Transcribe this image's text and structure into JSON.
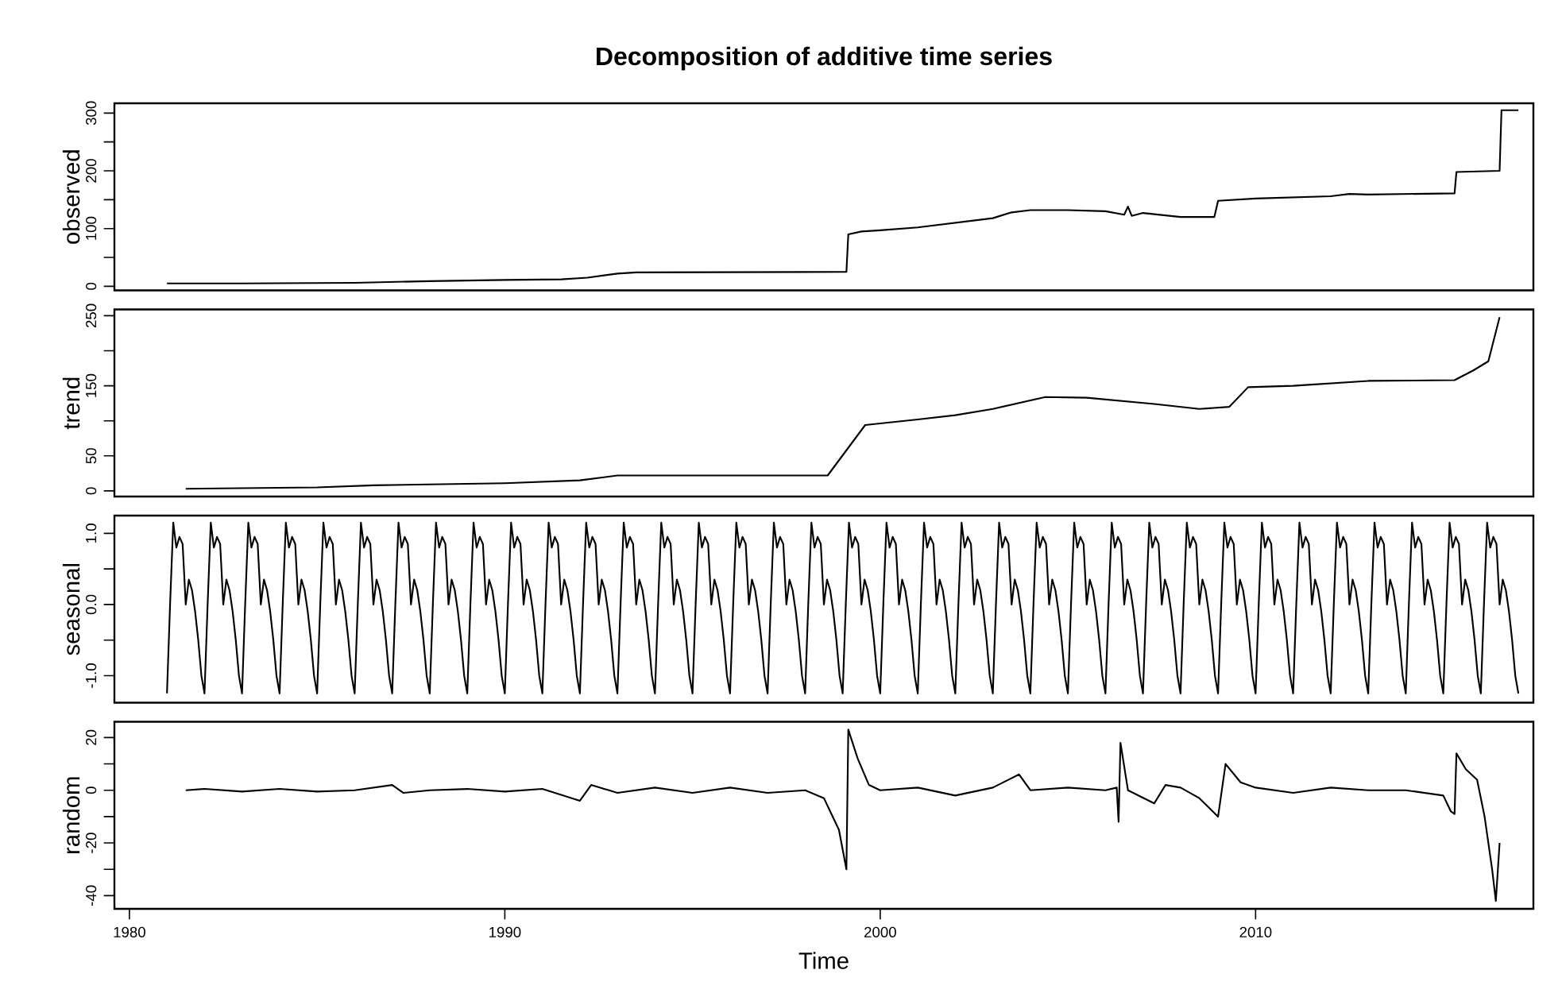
{
  "chart_data": [
    {
      "type": "line",
      "title": "Decomposition of additive time series",
      "ylabel": "observed",
      "color": "#000000",
      "tick_labels": "y",
      "xlim": [
        1979.6,
        2017.4
      ],
      "ylim": [
        -7,
        317
      ],
      "yticks": [
        0,
        {
          "value": 50,
          "label": null
        },
        100,
        {
          "value": 150,
          "label": null
        },
        200,
        {
          "value": 250,
          "label": null
        },
        300
      ],
      "x": [
        1981,
        1983,
        1986,
        1988,
        1990,
        1991.5,
        1992.2,
        1993,
        1993.5,
        1999.1,
        1999.15,
        1999.5,
        2000,
        2001,
        2002,
        2003,
        2003.5,
        2004,
        2005,
        2006,
        2006.5,
        2006.6,
        2006.7,
        2007,
        2008,
        2008.9,
        2009,
        2010,
        2011,
        2012,
        2012.5,
        2013,
        2015.3,
        2015.35,
        2016.5,
        2016.55,
        2017
      ],
      "values": [
        5,
        5,
        6,
        9,
        11,
        12,
        15,
        22,
        24,
        25,
        90,
        95,
        97,
        102,
        110,
        118,
        128,
        132,
        132,
        130,
        124,
        138,
        122,
        127,
        120,
        120,
        148,
        152,
        154,
        156,
        160,
        159,
        161,
        198,
        200,
        305,
        305
      ]
    },
    {
      "type": "line",
      "ylabel": "trend",
      "color": "#000000",
      "tick_labels": "y",
      "xlim": [
        1979.6,
        2017.4
      ],
      "ylim": [
        -8,
        259
      ],
      "yticks": [
        0,
        50,
        {
          "value": 100,
          "label": null
        },
        150,
        {
          "value": 200,
          "label": null
        },
        250
      ],
      "x": [
        1981.5,
        1985,
        1986.5,
        1990,
        1992,
        1993,
        1998.6,
        1999.6,
        2001,
        2002,
        2003,
        2004.4,
        2005.5,
        2007.3,
        2008.5,
        2009.3,
        2009.8,
        2011,
        2013,
        2015.3,
        2015.8,
        2016.2,
        2016.5
      ],
      "values": [
        3,
        5,
        8,
        11,
        15,
        22,
        22,
        94,
        102,
        108,
        117,
        134,
        133,
        124,
        117,
        120,
        148,
        150,
        157,
        158,
        172,
        185,
        248
      ]
    },
    {
      "type": "line",
      "ylabel": "seasonal",
      "color": "#000000",
      "tick_labels": "y",
      "xlim": [
        1979.6,
        2017.4
      ],
      "ylim": [
        -1.38,
        1.25
      ],
      "yticks": [
        {
          "value": -1,
          "label": "-1.0"
        },
        {
          "value": -0.5,
          "label": null
        },
        {
          "value": 0,
          "label": "0.0"
        },
        {
          "value": 0.5,
          "label": null
        },
        {
          "value": 1,
          "label": "1.0"
        }
      ],
      "x": [
        1981,
        1981.083,
        1981.167,
        1981.25,
        1981.333,
        1981.417,
        1981.5,
        1981.583,
        1981.667,
        1981.75,
        1981.833,
        1981.917,
        1982,
        1982.083,
        1982.167,
        1982.25,
        1982.333,
        1982.417,
        1982.5,
        1982.583,
        1982.667,
        1982.75,
        1982.833,
        1982.917,
        1983,
        1983.083,
        1983.167,
        1983.25,
        1983.333,
        1983.417,
        1983.5,
        1983.583,
        1983.667,
        1983.75,
        1983.833,
        1983.917,
        1984,
        1984.083,
        1984.167,
        1984.25,
        1984.333,
        1984.417,
        1984.5,
        1984.583,
        1984.667,
        1984.75,
        1984.833,
        1984.917,
        1985,
        1985.083,
        1985.167,
        1985.25,
        1985.333,
        1985.417,
        1985.5,
        1985.583,
        1985.667,
        1985.75,
        1985.833,
        1985.917,
        1986,
        1986.083,
        1986.167,
        1986.25,
        1986.333,
        1986.417,
        1986.5,
        1986.583,
        1986.667,
        1986.75,
        1986.833,
        1986.917,
        1987,
        1987.083,
        1987.167,
        1987.25,
        1987.333,
        1987.417,
        1987.5,
        1987.583,
        1987.667,
        1987.75,
        1987.833,
        1987.917,
        1988,
        1988.083,
        1988.167,
        1988.25,
        1988.333,
        1988.417,
        1988.5,
        1988.583,
        1988.667,
        1988.75,
        1988.833,
        1988.917,
        1989,
        1989.083,
        1989.167,
        1989.25,
        1989.333,
        1989.417,
        1989.5,
        1989.583,
        1989.667,
        1989.75,
        1989.833,
        1989.917,
        1990,
        1990.083,
        1990.167,
        1990.25,
        1990.333,
        1990.417,
        1990.5,
        1990.583,
        1990.667,
        1990.75,
        1990.833,
        1990.917,
        1991,
        1991.083,
        1991.167,
        1991.25,
        1991.333,
        1991.417,
        1991.5,
        1991.583,
        1991.667,
        1991.75,
        1991.833,
        1991.917,
        1992,
        1992.083,
        1992.167,
        1992.25,
        1992.333,
        1992.417,
        1992.5,
        1992.583,
        1992.667,
        1992.75,
        1992.833,
        1992.917,
        1993,
        1993.083,
        1993.167,
        1993.25,
        1993.333,
        1993.417,
        1993.5,
        1993.583,
        1993.667,
        1993.75,
        1993.833,
        1993.917,
        1994,
        1994.083,
        1994.167,
        1994.25,
        1994.333,
        1994.417,
        1994.5,
        1994.583,
        1994.667,
        1994.75,
        1994.833,
        1994.917,
        1995,
        1995.083,
        1995.167,
        1995.25,
        1995.333,
        1995.417,
        1995.5,
        1995.583,
        1995.667,
        1995.75,
        1995.833,
        1995.917,
        1996,
        1996.083,
        1996.167,
        1996.25,
        1996.333,
        1996.417,
        1996.5,
        1996.583,
        1996.667,
        1996.75,
        1996.833,
        1996.917,
        1997,
        1997.083,
        1997.167,
        1997.25,
        1997.333,
        1997.417,
        1997.5,
        1997.583,
        1997.667,
        1997.75,
        1997.833,
        1997.917,
        1998,
        1998.083,
        1998.167,
        1998.25,
        1998.333,
        1998.417,
        1998.5,
        1998.583,
        1998.667,
        1998.75,
        1998.833,
        1998.917,
        1999,
        1999.083,
        1999.167,
        1999.25,
        1999.333,
        1999.417,
        1999.5,
        1999.583,
        1999.667,
        1999.75,
        1999.833,
        1999.917,
        2000,
        2000.083,
        2000.167,
        2000.25,
        2000.333,
        2000.417,
        2000.5,
        2000.583,
        2000.667,
        2000.75,
        2000.833,
        2000.917,
        2001,
        2001.083,
        2001.167,
        2001.25,
        2001.333,
        2001.417,
        2001.5,
        2001.583,
        2001.667,
        2001.75,
        2001.833,
        2001.917,
        2002,
        2002.083,
        2002.167,
        2002.25,
        2002.333,
        2002.417,
        2002.5,
        2002.583,
        2002.667,
        2002.75,
        2002.833,
        2002.917,
        2003,
        2003.083,
        2003.167,
        2003.25,
        2003.333,
        2003.417,
        2003.5,
        2003.583,
        2003.667,
        2003.75,
        2003.833,
        2003.917,
        2004,
        2004.083,
        2004.167,
        2004.25,
        2004.333,
        2004.417,
        2004.5,
        2004.583,
        2004.667,
        2004.75,
        2004.833,
        2004.917,
        2005,
        2005.083,
        2005.167,
        2005.25,
        2005.333,
        2005.417,
        2005.5,
        2005.583,
        2005.667,
        2005.75,
        2005.833,
        2005.917,
        2006,
        2006.083,
        2006.167,
        2006.25,
        2006.333,
        2006.417,
        2006.5,
        2006.583,
        2006.667,
        2006.75,
        2006.833,
        2006.917,
        2007,
        2007.083,
        2007.167,
        2007.25,
        2007.333,
        2007.417,
        2007.5,
        2007.583,
        2007.667,
        2007.75,
        2007.833,
        2007.917,
        2008,
        2008.083,
        2008.167,
        2008.25,
        2008.333,
        2008.417,
        2008.5,
        2008.583,
        2008.667,
        2008.75,
        2008.833,
        2008.917,
        2009,
        2009.083,
        2009.167,
        2009.25,
        2009.333,
        2009.417,
        2009.5,
        2009.583,
        2009.667,
        2009.75,
        2009.833,
        2009.917,
        2010,
        2010.083,
        2010.167,
        2010.25,
        2010.333,
        2010.417,
        2010.5,
        2010.583,
        2010.667,
        2010.75,
        2010.833,
        2010.917,
        2011,
        2011.083,
        2011.167,
        2011.25,
        2011.333,
        2011.417,
        2011.5,
        2011.583,
        2011.667,
        2011.75,
        2011.833,
        2011.917,
        2012,
        2012.083,
        2012.167,
        2012.25,
        2012.333,
        2012.417,
        2012.5,
        2012.583,
        2012.667,
        2012.75,
        2012.833,
        2012.917,
        2013,
        2013.083,
        2013.167,
        2013.25,
        2013.333,
        2013.417,
        2013.5,
        2013.583,
        2013.667,
        2013.75,
        2013.833,
        2013.917,
        2014,
        2014.083,
        2014.167,
        2014.25,
        2014.333,
        2014.417,
        2014.5,
        2014.583,
        2014.667,
        2014.75,
        2014.833,
        2014.917,
        2015,
        2015.083,
        2015.167,
        2015.25,
        2015.333,
        2015.417,
        2015.5,
        2015.583,
        2015.667,
        2015.75,
        2015.833,
        2015.917,
        2016,
        2016.083,
        2016.167,
        2016.25,
        2016.333,
        2016.417,
        2016.5,
        2016.583,
        2016.667,
        2016.75,
        2016.833,
        2016.917,
        2017
      ],
      "values": [
        -1.25,
        0,
        1.15,
        0.8,
        0.95,
        0.85,
        0,
        0.35,
        0.2,
        -0.1,
        -0.5,
        -1,
        -1.25,
        0,
        1.15,
        0.8,
        0.95,
        0.85,
        0,
        0.35,
        0.2,
        -0.1,
        -0.5,
        -1,
        -1.25,
        0,
        1.15,
        0.8,
        0.95,
        0.85,
        0,
        0.35,
        0.2,
        -0.1,
        -0.5,
        -1,
        -1.25,
        0,
        1.15,
        0.8,
        0.95,
        0.85,
        0,
        0.35,
        0.2,
        -0.1,
        -0.5,
        -1,
        -1.25,
        0,
        1.15,
        0.8,
        0.95,
        0.85,
        0,
        0.35,
        0.2,
        -0.1,
        -0.5,
        -1,
        -1.25,
        0,
        1.15,
        0.8,
        0.95,
        0.85,
        0,
        0.35,
        0.2,
        -0.1,
        -0.5,
        -1,
        -1.25,
        0,
        1.15,
        0.8,
        0.95,
        0.85,
        0,
        0.35,
        0.2,
        -0.1,
        -0.5,
        -1,
        -1.25,
        0,
        1.15,
        0.8,
        0.95,
        0.85,
        0,
        0.35,
        0.2,
        -0.1,
        -0.5,
        -1,
        -1.25,
        0,
        1.15,
        0.8,
        0.95,
        0.85,
        0,
        0.35,
        0.2,
        -0.1,
        -0.5,
        -1,
        -1.25,
        0,
        1.15,
        0.8,
        0.95,
        0.85,
        0,
        0.35,
        0.2,
        -0.1,
        -0.5,
        -1,
        -1.25,
        0,
        1.15,
        0.8,
        0.95,
        0.85,
        0,
        0.35,
        0.2,
        -0.1,
        -0.5,
        -1,
        -1.25,
        0,
        1.15,
        0.8,
        0.95,
        0.85,
        0,
        0.35,
        0.2,
        -0.1,
        -0.5,
        -1,
        -1.25,
        0,
        1.15,
        0.8,
        0.95,
        0.85,
        0,
        0.35,
        0.2,
        -0.1,
        -0.5,
        -1,
        -1.25,
        0,
        1.15,
        0.8,
        0.95,
        0.85,
        0,
        0.35,
        0.2,
        -0.1,
        -0.5,
        -1,
        -1.25,
        0,
        1.15,
        0.8,
        0.95,
        0.85,
        0,
        0.35,
        0.2,
        -0.1,
        -0.5,
        -1,
        -1.25,
        0,
        1.15,
        0.8,
        0.95,
        0.85,
        0,
        0.35,
        0.2,
        -0.1,
        -0.5,
        -1,
        -1.25,
        0,
        1.15,
        0.8,
        0.95,
        0.85,
        0,
        0.35,
        0.2,
        -0.1,
        -0.5,
        -1,
        -1.25,
        0,
        1.15,
        0.8,
        0.95,
        0.85,
        0,
        0.35,
        0.2,
        -0.1,
        -0.5,
        -1,
        -1.25,
        0,
        1.15,
        0.8,
        0.95,
        0.85,
        0,
        0.35,
        0.2,
        -0.1,
        -0.5,
        -1,
        -1.25,
        0,
        1.15,
        0.8,
        0.95,
        0.85,
        0,
        0.35,
        0.2,
        -0.1,
        -0.5,
        -1,
        -1.25,
        0,
        1.15,
        0.8,
        0.95,
        0.85,
        0,
        0.35,
        0.2,
        -0.1,
        -0.5,
        -1,
        -1.25,
        0,
        1.15,
        0.8,
        0.95,
        0.85,
        0,
        0.35,
        0.2,
        -0.1,
        -0.5,
        -1,
        -1.25,
        0,
        1.15,
        0.8,
        0.95,
        0.85,
        0,
        0.35,
        0.2,
        -0.1,
        -0.5,
        -1,
        -1.25,
        0,
        1.15,
        0.8,
        0.95,
        0.85,
        0,
        0.35,
        0.2,
        -0.1,
        -0.5,
        -1,
        -1.25,
        0,
        1.15,
        0.8,
        0.95,
        0.85,
        0,
        0.35,
        0.2,
        -0.1,
        -0.5,
        -1,
        -1.25,
        0,
        1.15,
        0.8,
        0.95,
        0.85,
        0,
        0.35,
        0.2,
        -0.1,
        -0.5,
        -1,
        -1.25,
        0,
        1.15,
        0.8,
        0.95,
        0.85,
        0,
        0.35,
        0.2,
        -0.1,
        -0.5,
        -1,
        -1.25,
        0,
        1.15,
        0.8,
        0.95,
        0.85,
        0,
        0.35,
        0.2,
        -0.1,
        -0.5,
        -1,
        -1.25,
        0,
        1.15,
        0.8,
        0.95,
        0.85,
        0,
        0.35,
        0.2,
        -0.1,
        -0.5,
        -1,
        -1.25,
        0,
        1.15,
        0.8,
        0.95,
        0.85,
        0,
        0.35,
        0.2,
        -0.1,
        -0.5,
        -1,
        -1.25,
        0,
        1.15,
        0.8,
        0.95,
        0.85,
        0,
        0.35,
        0.2,
        -0.1,
        -0.5,
        -1,
        -1.25,
        0,
        1.15,
        0.8,
        0.95,
        0.85,
        0,
        0.35,
        0.2,
        -0.1,
        -0.5,
        -1,
        -1.25,
        0,
        1.15,
        0.8,
        0.95,
        0.85,
        0,
        0.35,
        0.2,
        -0.1,
        -0.5,
        -1,
        -1.25,
        0,
        1.15,
        0.8,
        0.95,
        0.85,
        0,
        0.35,
        0.2,
        -0.1,
        -0.5,
        -1,
        -1.25,
        0,
        1.15,
        0.8,
        0.95,
        0.85,
        0,
        0.35,
        0.2,
        -0.1,
        -0.5,
        -1,
        -1.25,
        0,
        1.15,
        0.8,
        0.95,
        0.85,
        0,
        0.35,
        0.2,
        -0.1,
        -0.5,
        -1,
        -1.25
      ]
    },
    {
      "type": "line",
      "ylabel": "random",
      "xlabel": "Time",
      "color": "#000000",
      "xlim": [
        1979.6,
        2017.4
      ],
      "ylim": [
        -45,
        26
      ],
      "xticks": [
        1980,
        1990,
        2000,
        2010
      ],
      "yticks": [
        -40,
        {
          "value": -30,
          "label": null
        },
        -20,
        {
          "value": -10,
          "label": null
        },
        0,
        {
          "value": 10,
          "label": null
        },
        20
      ],
      "x": [
        1981.5,
        1982,
        1983,
        1984,
        1985,
        1986,
        1987,
        1987.3,
        1988,
        1989,
        1990,
        1991,
        1992,
        1992.3,
        1993,
        1994,
        1995,
        1996,
        1997,
        1998,
        1998.5,
        1998.9,
        1999.1,
        1999.15,
        1999.4,
        1999.7,
        2000,
        2001,
        2002,
        2003,
        2003.7,
        2004,
        2005,
        2006,
        2006.3,
        2006.35,
        2006.4,
        2006.6,
        2007.3,
        2007.6,
        2008,
        2008.5,
        2009,
        2009.2,
        2009.6,
        2010,
        2011,
        2012,
        2013,
        2014,
        2015,
        2015.2,
        2015.3,
        2015.35,
        2015.6,
        2015.9,
        2016.1,
        2016.3,
        2016.4,
        2016.5
      ],
      "values": [
        0,
        0.5,
        -0.5,
        0.5,
        -0.5,
        0,
        2,
        -1,
        0,
        0.5,
        -0.5,
        0.5,
        -4,
        2,
        -1,
        1,
        -1,
        1,
        -1,
        0,
        -3,
        -15,
        -30,
        23,
        12,
        2,
        0,
        1,
        -2,
        1,
        6,
        0,
        1,
        0,
        1,
        -12,
        18,
        0,
        -5,
        2,
        1,
        -3,
        -10,
        10,
        3,
        1,
        -1,
        1,
        0,
        0,
        -2,
        -8,
        -9,
        14,
        8,
        4,
        -10,
        -30,
        -42,
        -20
      ]
    }
  ]
}
